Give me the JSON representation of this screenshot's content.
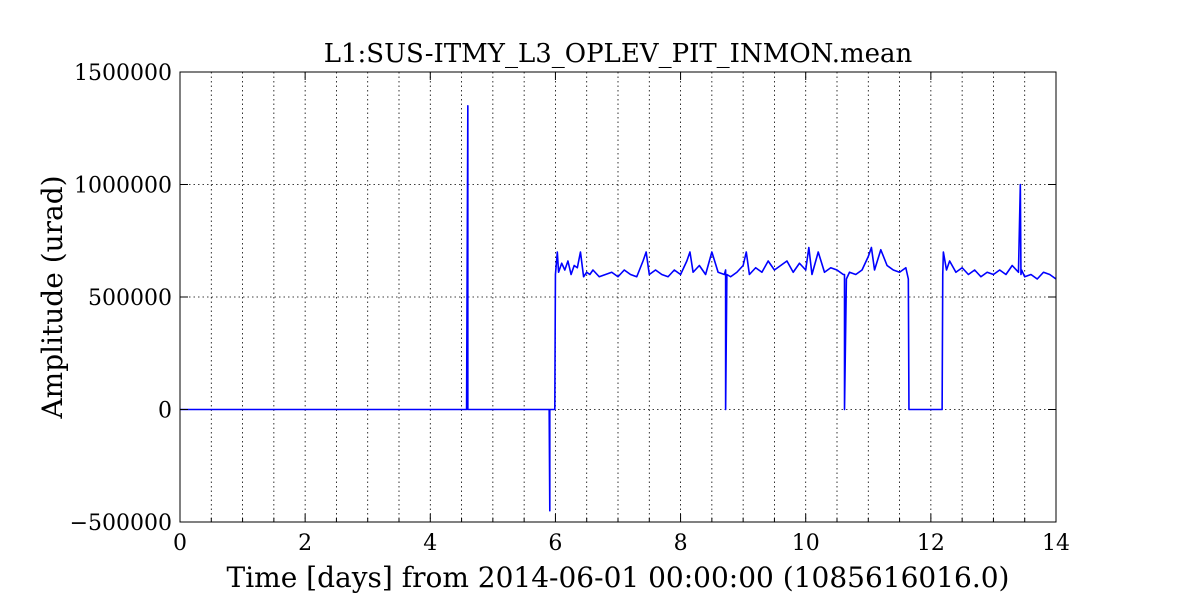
{
  "chart_data": {
    "type": "line",
    "title": "L1:SUS-ITMY_L3_OPLEV_PIT_INMON.mean",
    "xlabel": "Time [days] from 2014-06-01 00:00:00 (1085616016.0)",
    "ylabel": "Amplitude (urad)",
    "xlim": [
      0,
      14
    ],
    "ylim": [
      -500000,
      1500000
    ],
    "xticks": [
      0,
      2,
      4,
      6,
      8,
      10,
      12,
      14
    ],
    "xtick_labels": [
      "0",
      "2",
      "4",
      "6",
      "8",
      "10",
      "12",
      "14"
    ],
    "yticks": [
      -500000,
      0,
      500000,
      1000000,
      1500000
    ],
    "ytick_labels": [
      "−500000",
      "0",
      "500000",
      "1000000",
      "1500000"
    ],
    "grid": true,
    "line_color": "#0000ff",
    "series": [
      {
        "x": [
          0,
          4.58,
          4.6,
          4.6,
          4.62,
          5.9,
          5.91,
          5.91,
          5.92,
          5.95,
          5.99,
          6.0,
          6.03,
          6.05,
          6.1,
          6.15,
          6.2,
          6.25,
          6.3,
          6.35,
          6.4,
          6.45,
          6.5,
          6.55,
          6.6,
          6.7,
          6.8,
          6.9,
          7.0,
          7.1,
          7.2,
          7.3,
          7.4,
          7.45,
          7.5,
          7.6,
          7.7,
          7.8,
          7.9,
          8.0,
          8.1,
          8.15,
          8.2,
          8.3,
          8.4,
          8.5,
          8.6,
          8.7,
          8.72,
          8.72,
          8.74,
          8.8,
          8.9,
          9.0,
          9.05,
          9.1,
          9.2,
          9.3,
          9.4,
          9.5,
          9.6,
          9.7,
          9.8,
          9.9,
          10.0,
          10.05,
          10.1,
          10.2,
          10.3,
          10.4,
          10.5,
          10.6,
          10.62,
          10.62,
          10.65,
          10.7,
          10.8,
          10.9,
          11.0,
          11.05,
          11.1,
          11.2,
          11.3,
          11.4,
          11.5,
          11.6,
          11.64,
          11.65,
          11.66,
          12.18,
          12.19,
          12.2,
          12.25,
          12.3,
          12.4,
          12.5,
          12.6,
          12.7,
          12.8,
          12.9,
          13.0,
          13.1,
          13.2,
          13.3,
          13.4,
          13.43,
          13.44,
          13.45,
          13.5,
          13.6,
          13.7,
          13.8,
          13.9,
          14.0
        ],
        "y": [
          0,
          0,
          1350000,
          0,
          0,
          0,
          -450000,
          0,
          0,
          0,
          0,
          600000,
          700000,
          610000,
          650000,
          620000,
          660000,
          600000,
          640000,
          630000,
          700000,
          590000,
          610000,
          600000,
          620000,
          590000,
          600000,
          610000,
          590000,
          620000,
          600000,
          590000,
          660000,
          700000,
          600000,
          620000,
          600000,
          590000,
          620000,
          600000,
          660000,
          700000,
          610000,
          640000,
          600000,
          700000,
          610000,
          600000,
          620000,
          0,
          600000,
          590000,
          610000,
          640000,
          700000,
          600000,
          630000,
          610000,
          660000,
          620000,
          640000,
          660000,
          610000,
          650000,
          620000,
          720000,
          600000,
          700000,
          610000,
          630000,
          620000,
          600000,
          600000,
          0,
          580000,
          610000,
          600000,
          620000,
          680000,
          720000,
          620000,
          710000,
          640000,
          620000,
          610000,
          630000,
          580000,
          0,
          0,
          0,
          600000,
          700000,
          620000,
          660000,
          610000,
          630000,
          600000,
          620000,
          590000,
          610000,
          600000,
          620000,
          600000,
          640000,
          610000,
          1000000,
          600000,
          620000,
          590000,
          600000,
          580000,
          610000,
          600000,
          580000
        ]
      }
    ]
  }
}
